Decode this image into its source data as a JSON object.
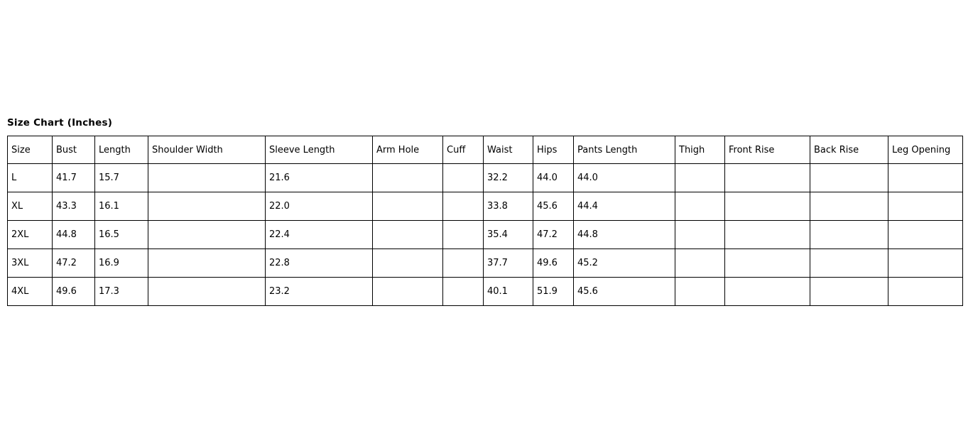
{
  "chart_data": {
    "type": "table",
    "title": "Size Chart (Inches)",
    "unit": "Inches",
    "columns": [
      "Size",
      "Bust",
      "Length",
      "Shoulder Width",
      "Sleeve Length",
      "Arm Hole",
      "Cuff",
      "Waist",
      "Hips",
      "Pants Length",
      "Thigh",
      "Front Rise",
      "Back Rise",
      "Leg Opening"
    ],
    "rows": [
      [
        "L",
        "41.7",
        "15.7",
        "",
        "21.6",
        "",
        "",
        "32.2",
        "44.0",
        "44.0",
        "",
        "",
        "",
        ""
      ],
      [
        "XL",
        "43.3",
        "16.1",
        "",
        "22.0",
        "",
        "",
        "33.8",
        "45.6",
        "44.4",
        "",
        "",
        "",
        ""
      ],
      [
        "2XL",
        "44.8",
        "16.5",
        "",
        "22.4",
        "",
        "",
        "35.4",
        "47.2",
        "44.8",
        "",
        "",
        "",
        ""
      ],
      [
        "3XL",
        "47.2",
        "16.9",
        "",
        "22.8",
        "",
        "",
        "37.7",
        "49.6",
        "45.2",
        "",
        "",
        "",
        ""
      ],
      [
        "4XL",
        "49.6",
        "17.3",
        "",
        "23.2",
        "",
        "",
        "40.1",
        "51.9",
        "45.6",
        "",
        "",
        "",
        ""
      ]
    ],
    "layout": {
      "grid": "on",
      "border_color": "#000000",
      "text_color": "#000000",
      "background_color": "#ffffff"
    }
  }
}
